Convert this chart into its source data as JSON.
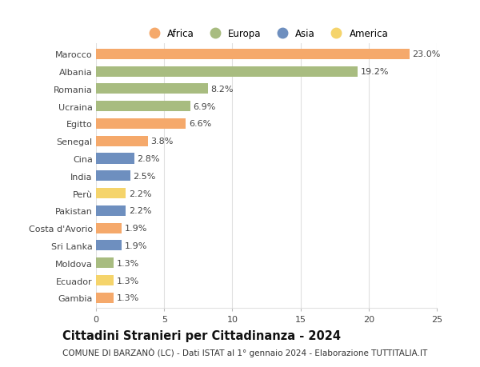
{
  "countries": [
    "Marocco",
    "Albania",
    "Romania",
    "Ucraina",
    "Egitto",
    "Senegal",
    "Cina",
    "India",
    "Perù",
    "Pakistan",
    "Costa d'Avorio",
    "Sri Lanka",
    "Moldova",
    "Ecuador",
    "Gambia"
  ],
  "values": [
    23.0,
    19.2,
    8.2,
    6.9,
    6.6,
    3.8,
    2.8,
    2.5,
    2.2,
    2.2,
    1.9,
    1.9,
    1.3,
    1.3,
    1.3
  ],
  "continents": [
    "Africa",
    "Europa",
    "Europa",
    "Europa",
    "Africa",
    "Africa",
    "Asia",
    "Asia",
    "America",
    "Asia",
    "Africa",
    "Asia",
    "Europa",
    "America",
    "Africa"
  ],
  "colors": {
    "Africa": "#F5A96B",
    "Europa": "#A8BC80",
    "Asia": "#6E8FBF",
    "America": "#F5D46B"
  },
  "xlim": [
    0,
    25
  ],
  "xticks": [
    0,
    5,
    10,
    15,
    20,
    25
  ],
  "title": "Cittadini Stranieri per Cittadinanza - 2024",
  "subtitle": "COMUNE DI BARZANÒ (LC) - Dati ISTAT al 1° gennaio 2024 - Elaborazione TUTTITALIA.IT",
  "background_color": "#ffffff",
  "grid_color": "#e0e0e0",
  "bar_height": 0.6,
  "label_fontsize": 8,
  "title_fontsize": 10.5,
  "subtitle_fontsize": 7.5,
  "legend_order": [
    "Africa",
    "Europa",
    "Asia",
    "America"
  ]
}
